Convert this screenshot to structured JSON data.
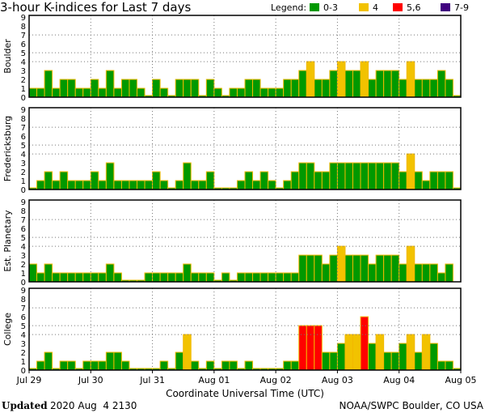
{
  "chart_data": {
    "type": "bar",
    "title": "3-hour K-indices for Last 7 days",
    "xlabel": "Coordinate Universal Time (UTC)",
    "x_tick_labels": [
      "Jul 29",
      "Jul 30",
      "Jul 31",
      "Aug 01",
      "Aug 02",
      "Aug 03",
      "Aug 04",
      "Aug 05"
    ],
    "bars_per_day": 8,
    "ylim": [
      0,
      9
    ],
    "y_ticks": [
      "0",
      "1",
      "2",
      "3",
      "4",
      "5",
      "6",
      "7",
      "8",
      "9"
    ],
    "gridlines_y": [
      4,
      5,
      7
    ],
    "legend": {
      "label": "Legend:",
      "entries": [
        {
          "label": "0-3",
          "color": "#009900"
        },
        {
          "label": "4",
          "color": "#f2c200"
        },
        {
          "label": "5,6",
          "color": "#ff0000"
        },
        {
          "label": "7-9",
          "color": "#400080"
        }
      ],
      "placement": "top-right"
    },
    "bar_outline_color": "#f2b800",
    "series": [
      {
        "name": "Boulder",
        "values": [
          1,
          1,
          3,
          1,
          2,
          2,
          1,
          1,
          2,
          1,
          3,
          1,
          2,
          2,
          1,
          0,
          2,
          1,
          0,
          2,
          2,
          2,
          0,
          2,
          1,
          0,
          1,
          1,
          2,
          2,
          1,
          1,
          1,
          2,
          2,
          3,
          4,
          2,
          2,
          3,
          4,
          3,
          3,
          4,
          2,
          3,
          3,
          3,
          2,
          4,
          2,
          2,
          2,
          3,
          2,
          0
        ]
      },
      {
        "name": "Fredericksburg",
        "values": [
          0,
          1,
          2,
          1,
          2,
          1,
          1,
          1,
          2,
          1,
          3,
          1,
          1,
          1,
          1,
          1,
          2,
          1,
          0,
          1,
          3,
          1,
          1,
          2,
          0,
          0,
          0,
          1,
          2,
          1,
          2,
          1,
          0,
          1,
          2,
          3,
          3,
          2,
          2,
          3,
          3,
          3,
          3,
          3,
          3,
          3,
          3,
          3,
          2,
          4,
          2,
          1,
          2,
          2,
          2,
          0
        ]
      },
      {
        "name": "Est. Planetary",
        "values": [
          2,
          1,
          2,
          1,
          1,
          1,
          1,
          1,
          1,
          1,
          2,
          1,
          0,
          0,
          0,
          1,
          1,
          1,
          1,
          1,
          2,
          1,
          1,
          1,
          0,
          1,
          0,
          1,
          1,
          1,
          1,
          1,
          1,
          1,
          1,
          3,
          3,
          3,
          2,
          3,
          4,
          3,
          3,
          3,
          2,
          3,
          3,
          3,
          2,
          4,
          2,
          2,
          2,
          1,
          2,
          null
        ]
      },
      {
        "name": "College",
        "values": [
          0,
          1,
          2,
          0,
          1,
          1,
          0,
          1,
          1,
          1,
          2,
          2,
          1,
          0,
          0,
          0,
          0,
          1,
          0,
          2,
          4,
          1,
          0,
          1,
          0,
          1,
          1,
          0,
          1,
          0,
          0,
          0,
          0,
          1,
          1,
          5,
          5,
          5,
          2,
          2,
          3,
          4,
          4,
          6,
          3,
          4,
          2,
          2,
          3,
          4,
          2,
          4,
          3,
          1,
          1,
          0
        ]
      }
    ]
  },
  "footer": {
    "updated_label": "Updated",
    "updated_value": "2020 Aug  4 2130",
    "source": "NOAA/SWPC Boulder, CO USA"
  }
}
